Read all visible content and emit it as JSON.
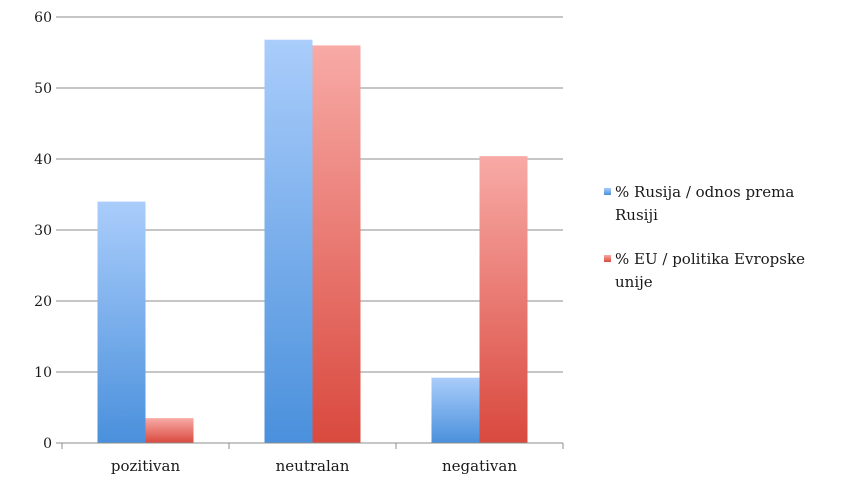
{
  "chart_data": {
    "type": "bar",
    "categories": [
      "pozitivan",
      "neutralan",
      "negativan"
    ],
    "series": [
      {
        "name": "% Rusija / odnos prema Rusiji",
        "name_lines": [
          "% Rusija / odnos prema",
          "Rusiji"
        ],
        "values": [
          34,
          56.8,
          9.2
        ],
        "color_top": "#aacdfb",
        "color_bottom": "#4a90dc"
      },
      {
        "name": "% EU / politika Evropske unije",
        "name_lines": [
          "% EU / politika Evropske",
          "unije"
        ],
        "values": [
          3.5,
          56,
          40.4
        ],
        "color_top": "#f8aaa6",
        "color_bottom": "#d9493e"
      }
    ],
    "title": "",
    "xlabel": "",
    "ylabel": "",
    "ylim": [
      0,
      60
    ],
    "yticks": [
      0,
      10,
      20,
      30,
      40,
      50,
      60
    ],
    "grid": true,
    "legend_position": "right",
    "colors": {
      "gridline": "#8c8c8c",
      "axis": "#8c8c8c"
    }
  }
}
